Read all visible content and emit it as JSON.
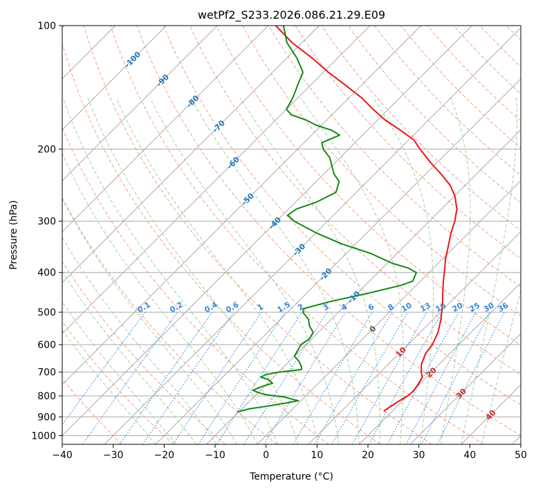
{
  "chart_data": {
    "type": "line",
    "subtype": "skew-t log-p",
    "title": "wetPf2_S233.2026.086.21.29.E09",
    "xlabel": "Temperature (°C)",
    "ylabel": "Pressure (hPa)",
    "xlim": [
      -40,
      50
    ],
    "ylim": [
      1050,
      100
    ],
    "y_scale": "log",
    "grid": true,
    "x_ticks": [
      -40,
      -30,
      -20,
      -10,
      0,
      10,
      20,
      30,
      40,
      50
    ],
    "y_ticks": [
      100,
      200,
      300,
      400,
      500,
      600,
      700,
      800,
      900,
      1000
    ],
    "colors": {
      "temperature": "#ee1111",
      "dewpoint": "#118811",
      "isotherm": "#a8a8a8",
      "dry_adiabat": "#f5a080",
      "moist_adiabat": "#a0d0a0",
      "mixing_ratio": "#3388dd",
      "label_cold": "#2277bb",
      "label_warm": "#cc2222"
    },
    "isotherm_labels": [
      {
        "text": "-100",
        "t": -100,
        "p": 121
      },
      {
        "text": "-90",
        "t": -90,
        "p": 136
      },
      {
        "text": "-80",
        "t": -80,
        "p": 153
      },
      {
        "text": "-70",
        "t": -70,
        "p": 176
      },
      {
        "text": "-60",
        "t": -60,
        "p": 216
      },
      {
        "text": "-50",
        "t": -50,
        "p": 265
      },
      {
        "text": "-40",
        "t": -40,
        "p": 303
      },
      {
        "text": "-30",
        "t": -30,
        "p": 352
      },
      {
        "text": "-20",
        "t": -20,
        "p": 404
      },
      {
        "text": "-10",
        "t": -10,
        "p": 459
      },
      {
        "text": "0",
        "t": 0,
        "p": 549
      },
      {
        "text": "10",
        "t": 10,
        "p": 625
      },
      {
        "text": "20",
        "t": 20,
        "p": 701
      },
      {
        "text": "30",
        "t": 30,
        "p": 789
      },
      {
        "text": "40",
        "t": 40,
        "p": 890
      }
    ],
    "mixing_ratio_values": [
      0.1,
      0.2,
      0.4,
      0.6,
      1,
      1.5,
      2,
      3,
      4,
      6,
      8,
      10,
      13,
      16,
      20,
      25,
      30,
      36
    ],
    "mixing_ratio_labels": [
      "0.1",
      "0.2",
      "0.4",
      "0.6",
      "1",
      "1.5",
      "2",
      "3",
      "4",
      "6",
      "8",
      "10",
      "13",
      "16",
      "20",
      "25",
      "30",
      "36"
    ],
    "series": [
      {
        "key": "temperature",
        "points": [
          [
            872,
            18.3
          ],
          [
            860,
            18.5
          ],
          [
            845,
            18.8
          ],
          [
            825,
            19.3
          ],
          [
            800,
            20.0
          ],
          [
            780,
            20.2
          ],
          [
            750,
            19.8
          ],
          [
            720,
            19.2
          ],
          [
            700,
            18.0
          ],
          [
            670,
            16.5
          ],
          [
            630,
            15.2
          ],
          [
            600,
            14.8
          ],
          [
            560,
            13.5
          ],
          [
            520,
            11.5
          ],
          [
            480,
            9.0
          ],
          [
            450,
            6.8
          ],
          [
            420,
            4.5
          ],
          [
            390,
            2.2
          ],
          [
            370,
            0.5
          ],
          [
            350,
            -1.0
          ],
          [
            320,
            -3.5
          ],
          [
            300,
            -5.0
          ],
          [
            280,
            -7.0
          ],
          [
            260,
            -10.0
          ],
          [
            245,
            -13.0
          ],
          [
            230,
            -17.0
          ],
          [
            215,
            -21.5
          ],
          [
            200,
            -26.0
          ],
          [
            190,
            -29.0
          ],
          [
            180,
            -33.5
          ],
          [
            170,
            -38.5
          ],
          [
            160,
            -43.0
          ],
          [
            150,
            -47.5
          ],
          [
            140,
            -53.0
          ],
          [
            130,
            -59.0
          ],
          [
            120,
            -65.0
          ],
          [
            110,
            -72.0
          ],
          [
            100,
            -78.5
          ]
        ]
      },
      {
        "key": "dewpoint",
        "points": [
          [
            875,
            -10.3
          ],
          [
            860,
            -8.5
          ],
          [
            845,
            -5.0
          ],
          [
            830,
            -2.0
          ],
          [
            822,
            -0.5
          ],
          [
            815,
            -2.0
          ],
          [
            805,
            -4.0
          ],
          [
            795,
            -8.0
          ],
          [
            785,
            -10.0
          ],
          [
            775,
            -11.5
          ],
          [
            760,
            -10.5
          ],
          [
            745,
            -9.0
          ],
          [
            730,
            -10.5
          ],
          [
            720,
            -12.5
          ],
          [
            710,
            -12.0
          ],
          [
            700,
            -10.0
          ],
          [
            690,
            -6.0
          ],
          [
            680,
            -6.5
          ],
          [
            660,
            -8.0
          ],
          [
            640,
            -10.0
          ],
          [
            620,
            -10.5
          ],
          [
            600,
            -11.0
          ],
          [
            580,
            -10.5
          ],
          [
            560,
            -11.0
          ],
          [
            540,
            -13.0
          ],
          [
            520,
            -14.5
          ],
          [
            500,
            -17.0
          ],
          [
            490,
            -17.5
          ],
          [
            470,
            -13.5
          ],
          [
            450,
            -8.0
          ],
          [
            430,
            -3.0
          ],
          [
            420,
            -1.5
          ],
          [
            400,
            -2.5
          ],
          [
            390,
            -5.0
          ],
          [
            380,
            -9.0
          ],
          [
            360,
            -15.0
          ],
          [
            340,
            -23.0
          ],
          [
            320,
            -30.0
          ],
          [
            300,
            -36.5
          ],
          [
            290,
            -39.0
          ],
          [
            280,
            -38.5
          ],
          [
            270,
            -36.0
          ],
          [
            255,
            -34.0
          ],
          [
            240,
            -35.5
          ],
          [
            230,
            -38.0
          ],
          [
            210,
            -42.0
          ],
          [
            200,
            -45.0
          ],
          [
            193,
            -46.5
          ],
          [
            185,
            -44.5
          ],
          [
            180,
            -47.0
          ],
          [
            175,
            -51.0
          ],
          [
            170,
            -54.0
          ],
          [
            165,
            -58.0
          ],
          [
            160,
            -60.0
          ],
          [
            150,
            -61.0
          ],
          [
            140,
            -62.5
          ],
          [
            130,
            -64.0
          ],
          [
            120,
            -68.0
          ],
          [
            110,
            -73.0
          ],
          [
            100,
            -77.0
          ]
        ]
      }
    ]
  }
}
